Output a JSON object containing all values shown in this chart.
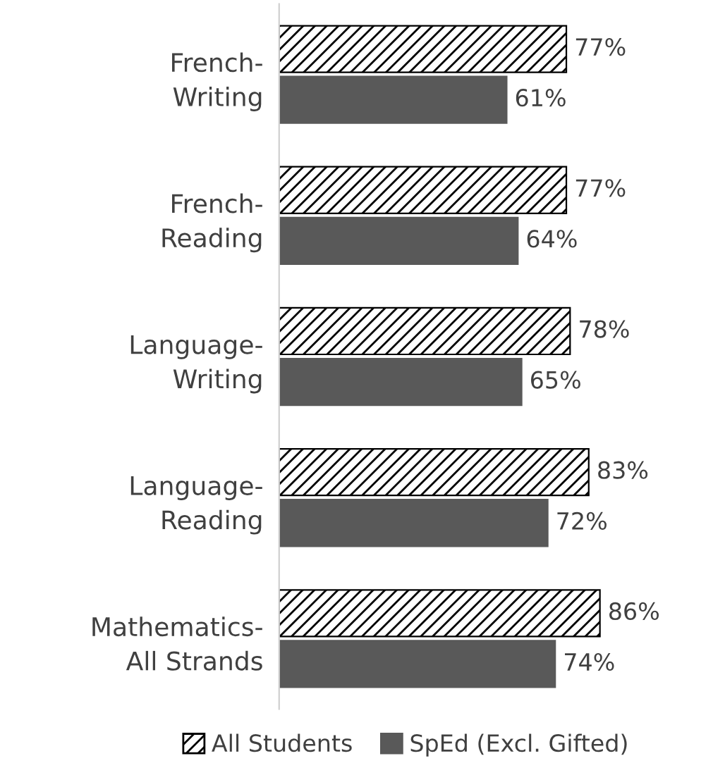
{
  "chart_data": {
    "type": "bar",
    "orientation": "horizontal",
    "categories": [
      "French-\nWriting",
      "French-\nReading",
      "Language-\nWriting",
      "Language-\nReading",
      "Mathematics-\nAll Strands"
    ],
    "series": [
      {
        "name": "All Students",
        "color": "#000000",
        "values": [
          77,
          77,
          78,
          83,
          86
        ],
        "value_labels": [
          "77%",
          "77%",
          "78%",
          "83%",
          "86%"
        ]
      },
      {
        "name": "SpEd (Excl. Gifted)",
        "color": "#595959",
        "values": [
          61,
          64,
          65,
          72,
          74
        ],
        "value_labels": [
          "61%",
          "64%",
          "65%",
          "72%",
          "74%"
        ]
      }
    ],
    "legend": "bottom",
    "grid": false
  }
}
